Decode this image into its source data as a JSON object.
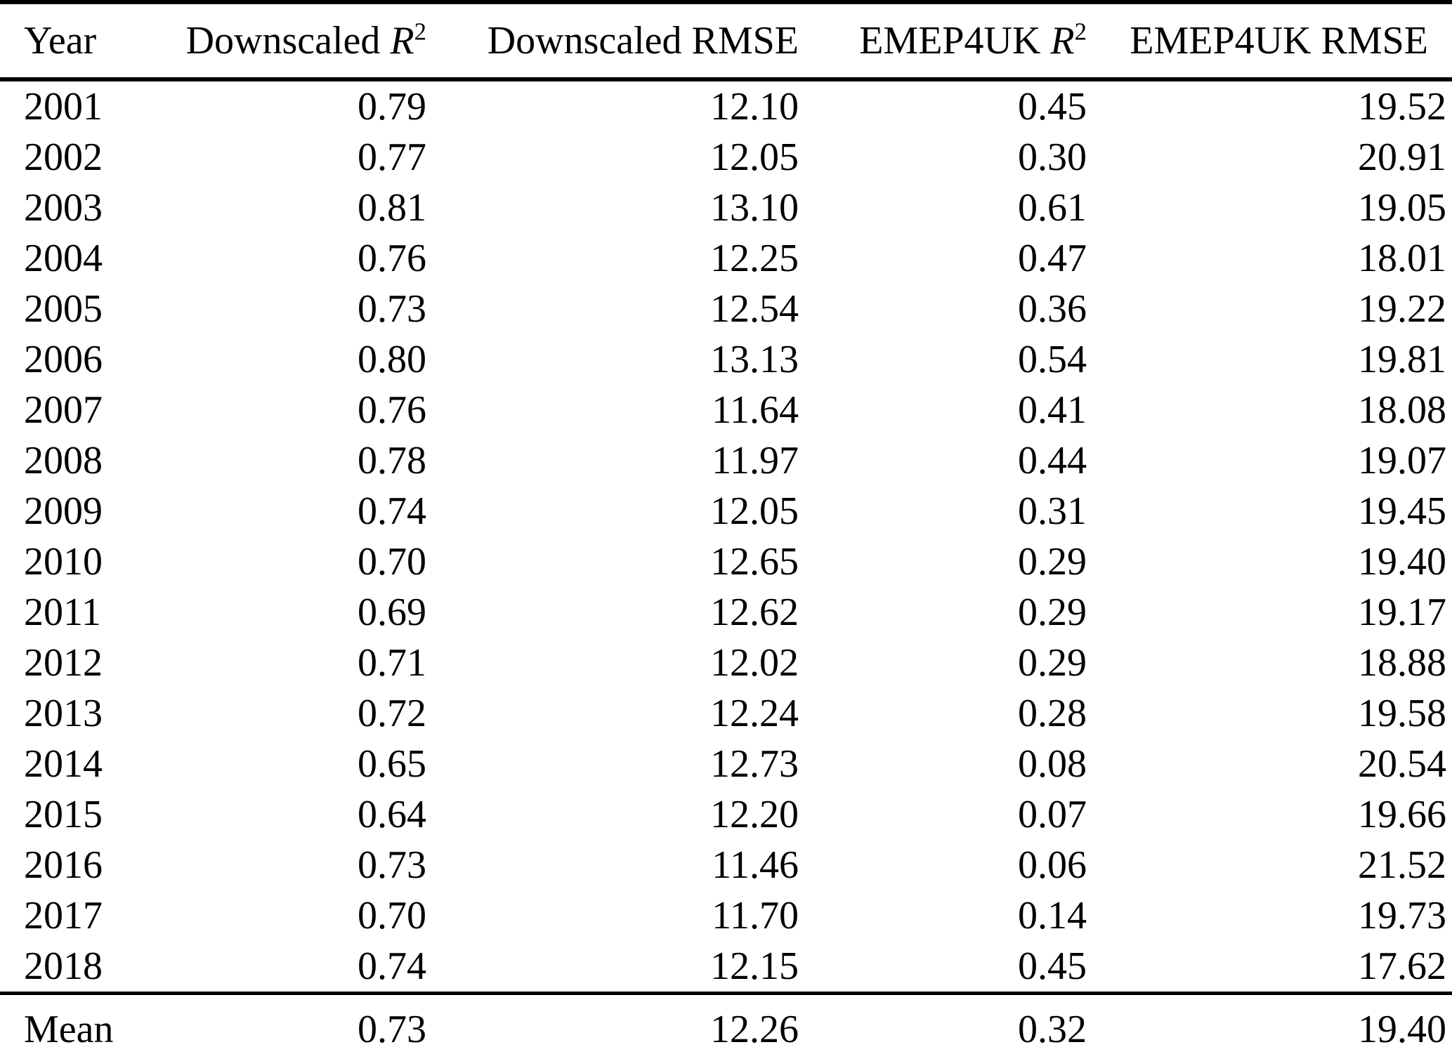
{
  "table": {
    "columns": [
      {
        "text": "Year"
      },
      {
        "text": "Downscaled ",
        "math": "R",
        "sup": "2"
      },
      {
        "text": "Downscaled RMSE"
      },
      {
        "text": "EMEP4UK ",
        "math": "R",
        "sup": "2"
      },
      {
        "text": "EMEP4UK RMSE"
      }
    ],
    "rows": [
      [
        "2001",
        "0.79",
        "12.10",
        "0.45",
        "19.52"
      ],
      [
        "2002",
        "0.77",
        "12.05",
        "0.30",
        "20.91"
      ],
      [
        "2003",
        "0.81",
        "13.10",
        "0.61",
        "19.05"
      ],
      [
        "2004",
        "0.76",
        "12.25",
        "0.47",
        "18.01"
      ],
      [
        "2005",
        "0.73",
        "12.54",
        "0.36",
        "19.22"
      ],
      [
        "2006",
        "0.80",
        "13.13",
        "0.54",
        "19.81"
      ],
      [
        "2007",
        "0.76",
        "11.64",
        "0.41",
        "18.08"
      ],
      [
        "2008",
        "0.78",
        "11.97",
        "0.44",
        "19.07"
      ],
      [
        "2009",
        "0.74",
        "12.05",
        "0.31",
        "19.45"
      ],
      [
        "2010",
        "0.70",
        "12.65",
        "0.29",
        "19.40"
      ],
      [
        "2011",
        "0.69",
        "12.62",
        "0.29",
        "19.17"
      ],
      [
        "2012",
        "0.71",
        "12.02",
        "0.29",
        "18.88"
      ],
      [
        "2013",
        "0.72",
        "12.24",
        "0.28",
        "19.58"
      ],
      [
        "2014",
        "0.65",
        "12.73",
        "0.08",
        "20.54"
      ],
      [
        "2015",
        "0.64",
        "12.20",
        "0.07",
        "19.66"
      ],
      [
        "2016",
        "0.73",
        "11.46",
        "0.06",
        "21.52"
      ],
      [
        "2017",
        "0.70",
        "11.70",
        "0.14",
        "19.73"
      ],
      [
        "2018",
        "0.74",
        "12.15",
        "0.45",
        "17.62"
      ]
    ],
    "mean": [
      "Mean",
      "0.73",
      "12.26",
      "0.32",
      "19.40"
    ]
  },
  "colors": {
    "text": "#000000",
    "background": "#ffffff",
    "rule": "#000000"
  }
}
